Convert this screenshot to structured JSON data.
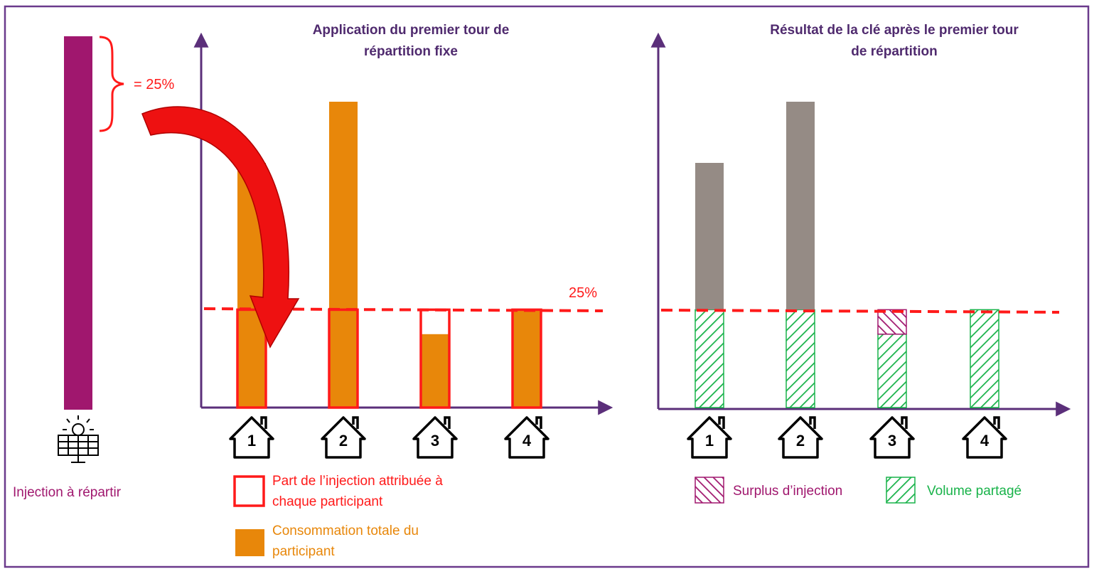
{
  "colors": {
    "frame": "#6b3a8c",
    "axis": "#5b2f7a",
    "injection_bar": "#a0176e",
    "consumption": "#e8870a",
    "allocation_outline": "#ff1a1a",
    "grey_bar": "#958b85",
    "shared_hatch": "#19b34a",
    "surplus_hatch": "#a0176e",
    "dashed_line": "#ff1a1a",
    "title_text": "#4f2a6e"
  },
  "left": {
    "injection_label": "Injection à répartir",
    "brace_label": "= 25%",
    "icon": "solar-panel-icon"
  },
  "panel1": {
    "title_line1": "Application du premier tour de",
    "title_line2": "répartition fixe",
    "threshold_label": "25%",
    "legend": {
      "allocation_line1": "Part de l’injection attribuée à",
      "allocation_line2": "chaque participant",
      "consumption_line1": "Consommation totale du",
      "consumption_line2": "participant"
    }
  },
  "panel2": {
    "title_line1": "Résultat de la clé après le premier tour",
    "title_line2": "de répartition",
    "legend": {
      "surplus": "Surplus d’injection",
      "shared": "Volume partagé"
    }
  },
  "houses": [
    "1",
    "2",
    "3",
    "4"
  ],
  "chart_data": [
    {
      "type": "bar",
      "title": "Application du premier tour de répartition fixe",
      "categories": [
        "1",
        "2",
        "3",
        "4"
      ],
      "threshold": 25,
      "series": [
        {
          "name": "Consommation totale du participant",
          "values": [
            80,
            100,
            24,
            32
          ]
        },
        {
          "name": "Part de l’injection attribuée à chaque participant",
          "values": [
            32,
            32,
            32,
            32
          ]
        }
      ]
    },
    {
      "type": "bar",
      "title": "Résultat de la clé après le premier tour de répartition",
      "categories": [
        "1",
        "2",
        "3",
        "4"
      ],
      "series": [
        {
          "name": "Volume partagé",
          "values": [
            32,
            32,
            24,
            32
          ]
        },
        {
          "name": "Surplus d’injection",
          "values": [
            0,
            0,
            8,
            0
          ]
        },
        {
          "values": [
            48,
            68,
            0,
            0
          ]
        }
      ]
    }
  ]
}
